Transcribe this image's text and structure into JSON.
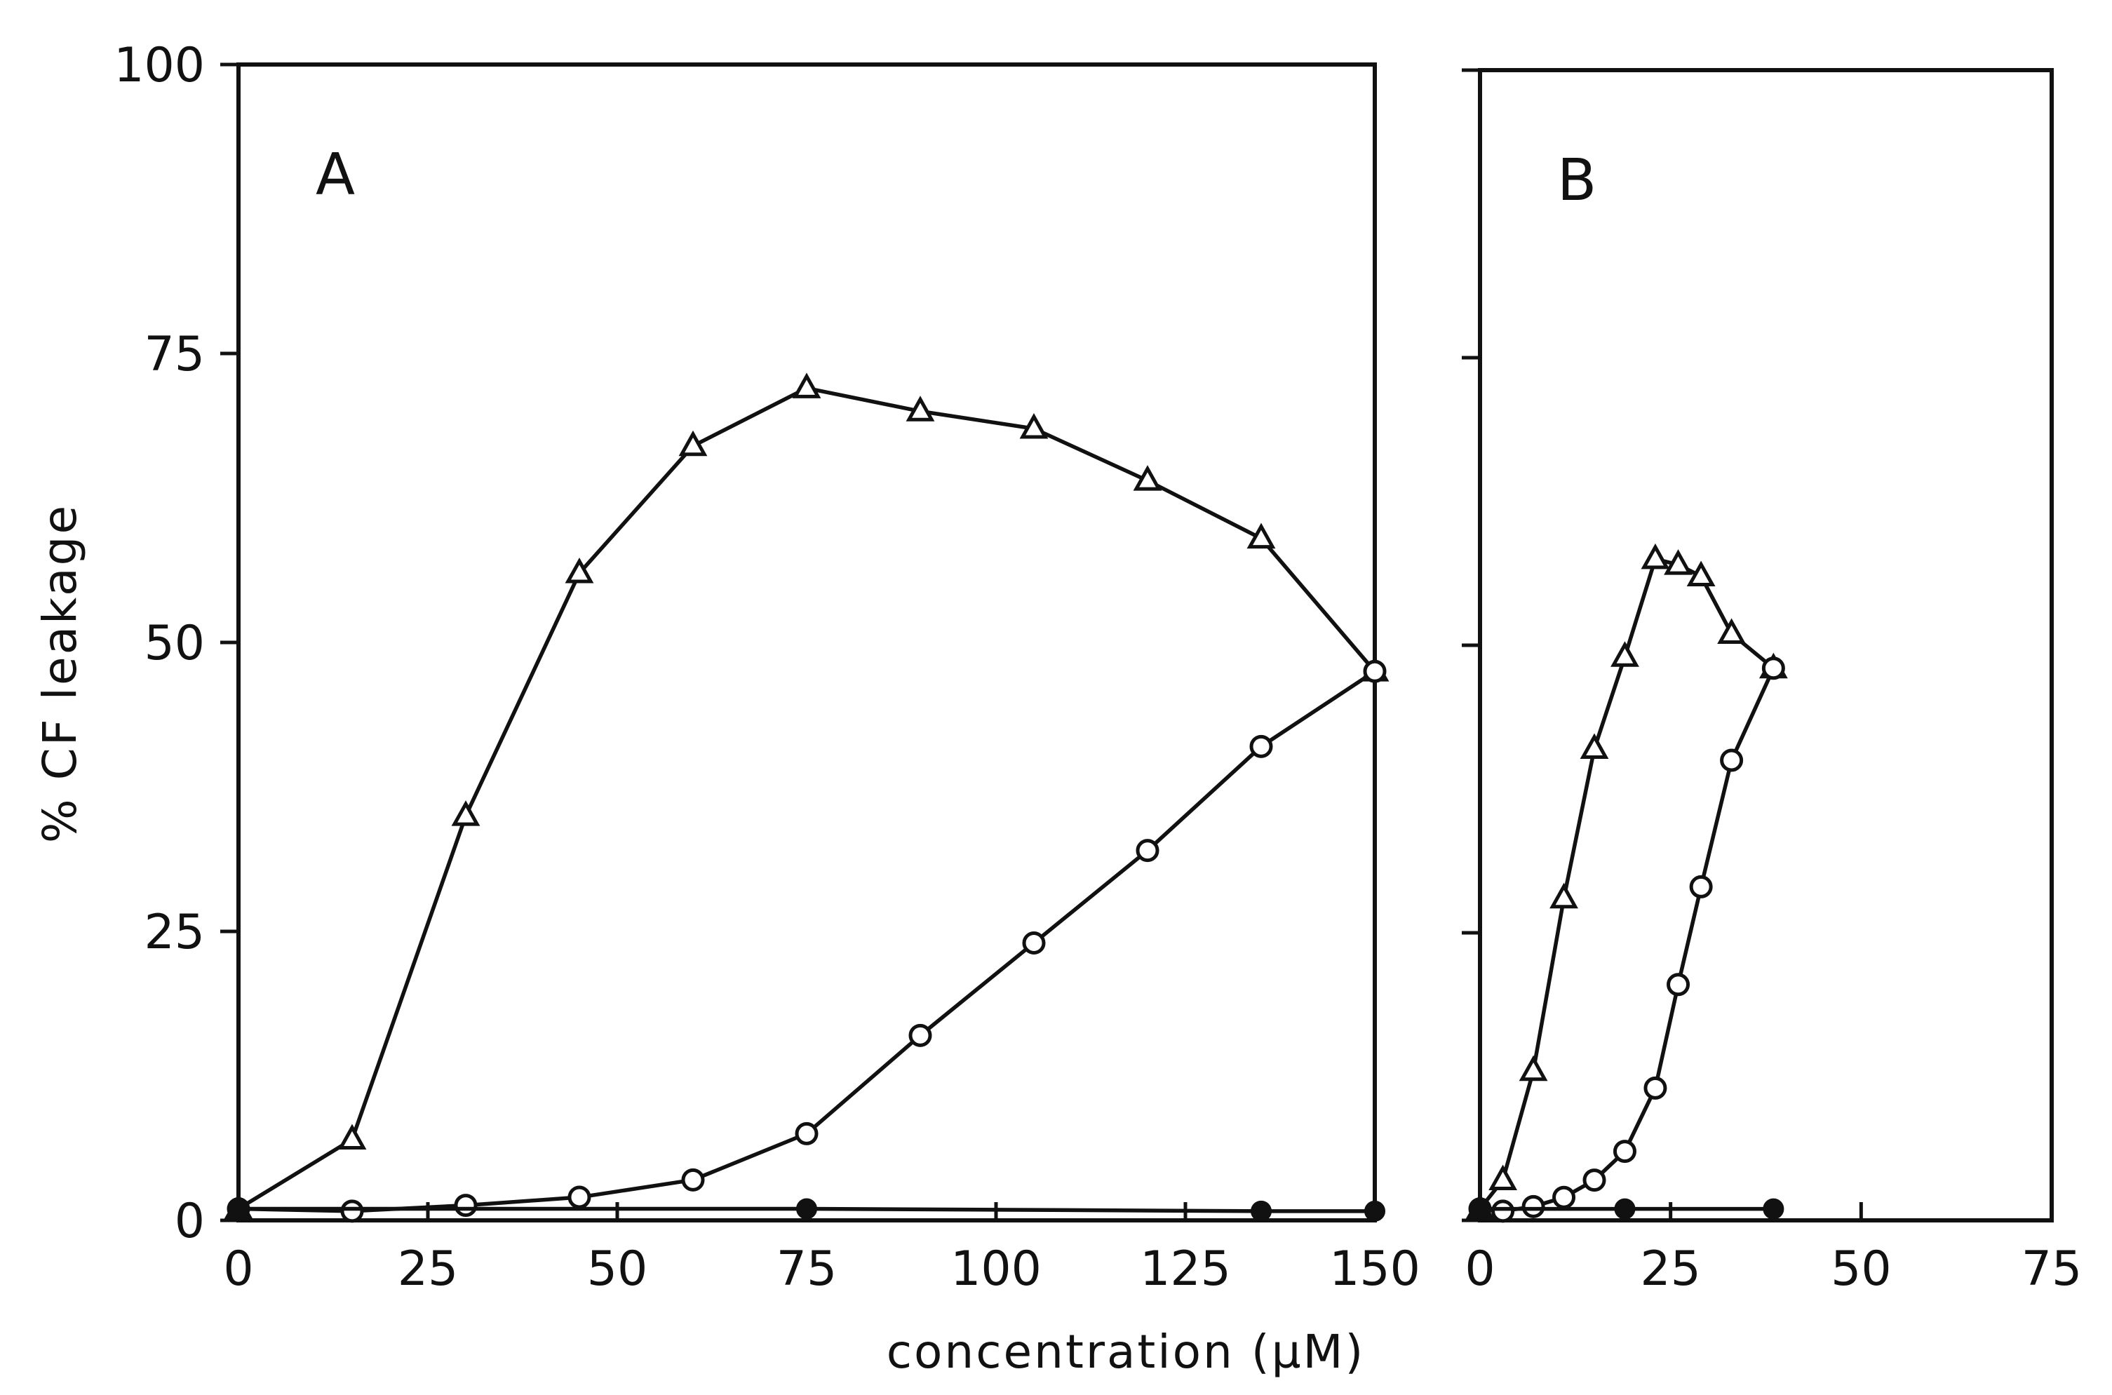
{
  "chart_data": [
    {
      "type": "line",
      "panel_label": "A",
      "xlabel": "concentration (µM)",
      "ylabel": "% CF leakage",
      "xlim": [
        0,
        150
      ],
      "ylim": [
        0,
        100
      ],
      "xticks": [
        0,
        25,
        50,
        75,
        100,
        125,
        150
      ],
      "yticks": [
        0,
        25,
        50,
        75,
        100
      ],
      "yticklabels_shown": true,
      "grid": false,
      "series": [
        {
          "name": "open triangles",
          "marker": "triangle-open",
          "x": [
            0,
            15,
            30,
            45,
            60,
            75,
            90,
            105,
            120,
            135,
            150
          ],
          "y": [
            1,
            7,
            35,
            56,
            67,
            72,
            70,
            68.5,
            64,
            59,
            47.5
          ]
        },
        {
          "name": "open circles",
          "marker": "circle-open",
          "x": [
            0,
            15,
            30,
            45,
            60,
            75,
            90,
            105,
            120,
            135,
            150
          ],
          "y": [
            1,
            0.8,
            1.3,
            2,
            3.5,
            7.5,
            16,
            24,
            32,
            41,
            47.5
          ]
        },
        {
          "name": "filled circles",
          "marker": "circle-filled",
          "x": [
            0,
            75,
            135,
            150
          ],
          "y": [
            1,
            1,
            0.8,
            0.8
          ]
        }
      ]
    },
    {
      "type": "line",
      "panel_label": "B",
      "xlabel": "concentration (µM)",
      "ylabel": "% CF leakage",
      "xlim": [
        0,
        75
      ],
      "ylim": [
        0,
        100
      ],
      "xticks": [
        0,
        25,
        50,
        75
      ],
      "yticks": [
        0,
        25,
        50,
        75,
        100
      ],
      "yticklabels_shown": false,
      "grid": false,
      "series": [
        {
          "name": "open triangles",
          "marker": "triangle-open",
          "x": [
            0,
            3,
            7,
            11,
            15,
            19,
            23,
            26,
            29,
            33,
            38.5
          ],
          "y": [
            1,
            3.5,
            13,
            28,
            41,
            49,
            57.5,
            57,
            56,
            51,
            48
          ]
        },
        {
          "name": "open circles",
          "marker": "circle-open",
          "x": [
            0,
            3,
            7,
            11,
            15,
            19,
            23,
            26,
            29,
            33,
            38.5
          ],
          "y": [
            1,
            0.8,
            1.2,
            2,
            3.5,
            6,
            11.5,
            20.5,
            29,
            40,
            48
          ]
        },
        {
          "name": "filled circles",
          "marker": "circle-filled",
          "x": [
            0,
            19,
            38.5
          ],
          "y": [
            1,
            1,
            1
          ]
        }
      ]
    }
  ]
}
